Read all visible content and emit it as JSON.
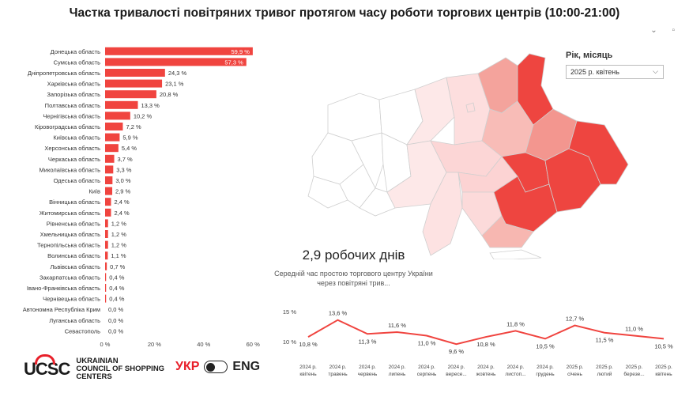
{
  "title": "Частка тривалості повітряних тривог протягом часу роботи торгових центрів (10:00-21:00)",
  "colors": {
    "accent": "#e8202a",
    "bar": "#f0443f",
    "map_high": "#ee4540",
    "map_mid": "#f3968f",
    "map_low": "#fbdada",
    "line": "#f0443f"
  },
  "filter": {
    "label": "Рік, місяць",
    "value": "2025 р. квітень",
    "icon": "chevron-down-icon"
  },
  "kpi": {
    "value": "2,9 робочих днів",
    "subtitle": "Середній час простою торгового центру України через повітряні трив..."
  },
  "logo": {
    "mark": "UCSC",
    "line1": "UKRAINIAN",
    "line2": "COUNCIL OF SHOPPING",
    "line3": "CENTERS"
  },
  "language": {
    "ukr": "УКР",
    "eng": "ENG"
  },
  "chart_data": [
    {
      "type": "bar",
      "orientation": "horizontal",
      "categories": [
        "Донецька область",
        "Сумська область",
        "Дніпропетровська область",
        "Харківська область",
        "Запорізька область",
        "Полтавська область",
        "Чернігівська область",
        "Кіровоградська область",
        "Київська область",
        "Херсонська область",
        "Черкаська область",
        "Миколаївська область",
        "Одеська область",
        "Київ",
        "Вінницька область",
        "Житомирська область",
        "Рівненська область",
        "Хмельницька область",
        "Тернопільська область",
        "Волинська область",
        "Львівська область",
        "Закарпатська область",
        "Івано-Франківська область",
        "Чернівецька область",
        "Автономна Республіка Крим",
        "Луганська область",
        "Севастополь"
      ],
      "values": [
        59.9,
        57.3,
        24.3,
        23.1,
        20.8,
        13.3,
        10.2,
        7.2,
        5.9,
        5.4,
        3.7,
        3.3,
        3.0,
        2.9,
        2.4,
        2.4,
        1.2,
        1.2,
        1.2,
        1.1,
        0.7,
        0.4,
        0.4,
        0.4,
        0.0,
        0.0,
        0.0
      ],
      "labels": [
        "59,9 %",
        "57,3 %",
        "24,3 %",
        "23,1 %",
        "20,8 %",
        "13,3 %",
        "10,2 %",
        "7,2 %",
        "5,9 %",
        "5,4 %",
        "3,7 %",
        "3,3 %",
        "3,0 %",
        "2,9 %",
        "2,4 %",
        "2,4 %",
        "1,2 %",
        "1,2 %",
        "1,2 %",
        "1,1 %",
        "0,7 %",
        "0,4 %",
        "0,4 %",
        "0,4 %",
        "0,0 %",
        "0,0 %",
        "0,0 %"
      ],
      "xticks": [
        "0 %",
        "20 %",
        "40 %",
        "60 %"
      ],
      "xlim": [
        0,
        65
      ]
    },
    {
      "type": "line",
      "x": [
        "2024 р. квітень",
        "2024 р. травень",
        "2024 р. червень",
        "2024 р. липень",
        "2024 р. серпень",
        "2024 р. вересе...",
        "2024 р. жовтень",
        "2024 р. листоп...",
        "2024 р. грудень",
        "2025 р. січень",
        "2025 р. лютий",
        "2025 р. березе...",
        "2025 р. квітень"
      ],
      "values": [
        10.8,
        13.6,
        11.3,
        11.6,
        11.0,
        9.6,
        10.8,
        11.8,
        10.5,
        12.7,
        11.5,
        11.0,
        10.5
      ],
      "labels": [
        "10,8 %",
        "13,6 %",
        "11,3 %",
        "11,6 %",
        "11,0 %",
        "9,6 %",
        "10,8 %",
        "11,8 %",
        "10,5 %",
        "12,7 %",
        "11,5 %",
        "11,0 %",
        "10,5 %"
      ],
      "yticks": [
        "15 %",
        "10 %"
      ],
      "ylim": [
        9.5,
        15
      ]
    }
  ]
}
